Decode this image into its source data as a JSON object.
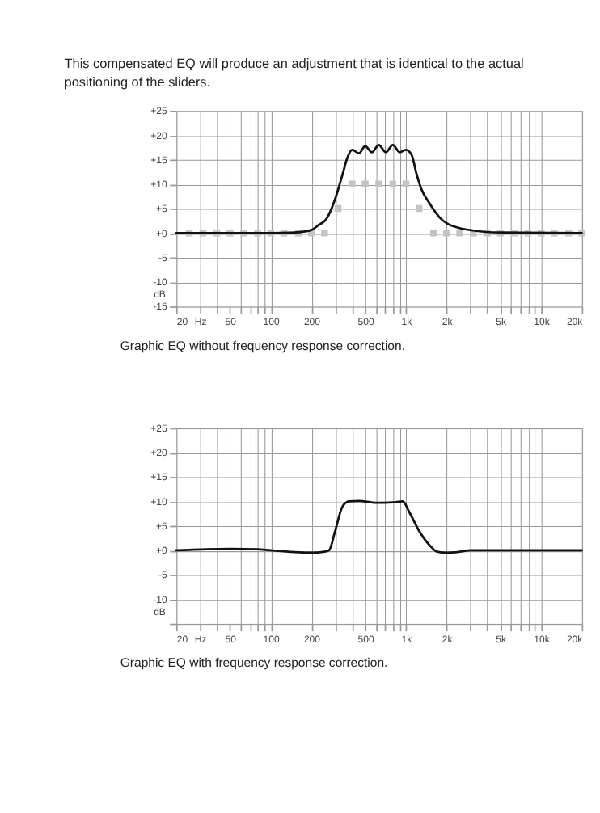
{
  "chart_data": [
    {
      "type": "line",
      "title": "This compensated EQ will produce an adjustment  that is identical to the actual positioning of the sliders.",
      "ylabel": "dB",
      "annotations": [
        "Graphic EQ without frequency response correction."
      ],
      "log": "x",
      "grid": true,
      "line_style": "solid",
      "xlim": [
        20,
        20000
      ],
      "ylim": [
        -15,
        25
      ],
      "xticks": [
        20,
        {
          "value": 30,
          "label": "Hz"
        },
        {
          "value": 40,
          "label": null
        },
        50,
        {
          "value": 60,
          "label": null
        },
        {
          "value": 70,
          "label": null
        },
        {
          "value": 80,
          "label": null
        },
        {
          "value": 90,
          "label": null
        },
        100,
        200,
        {
          "value": 300,
          "label": null
        },
        {
          "value": 400,
          "label": null
        },
        500,
        {
          "value": 600,
          "label": null
        },
        {
          "value": 700,
          "label": null
        },
        {
          "value": 800,
          "label": null
        },
        {
          "value": 900,
          "label": null
        },
        {
          "value": 1000,
          "label": "1k"
        },
        {
          "value": 2000,
          "label": "2k"
        },
        {
          "value": 3000,
          "label": null
        },
        {
          "value": 4000,
          "label": null
        },
        {
          "value": 5000,
          "label": "5k"
        },
        {
          "value": 6000,
          "label": null
        },
        {
          "value": 7000,
          "label": null
        },
        {
          "value": 8000,
          "label": null
        },
        {
          "value": 9000,
          "label": null
        },
        {
          "value": 10000,
          "label": "10k"
        },
        {
          "value": 20000,
          "label": "20k"
        }
      ],
      "yticks": [
        {
          "value": 25,
          "label": "+25"
        },
        {
          "value": 20,
          "label": "+20"
        },
        {
          "value": 15,
          "label": "+15"
        },
        {
          "value": 10,
          "label": "+10"
        },
        {
          "value": 5,
          "label": "+5"
        },
        {
          "value": 0,
          "label": "+0"
        },
        -5,
        -10,
        -15
      ],
      "series": [
        {
          "type": "scatter",
          "marker": "square",
          "color": "#c4c4c4",
          "x": [
            25,
            31.5,
            40,
            50,
            63,
            80,
            100,
            125,
            160,
            200,
            250,
            315,
            400,
            500,
            630,
            800,
            1000,
            1250,
            1600,
            2000,
            2500,
            3150,
            4000,
            5000,
            6300,
            8000,
            10000,
            12500,
            16000,
            20000
          ],
          "values": [
            0,
            0,
            0,
            0,
            0,
            0,
            0,
            0,
            0,
            0,
            0,
            5,
            10,
            10,
            10,
            10,
            10,
            5,
            0,
            0,
            0,
            0,
            0,
            0,
            0,
            0,
            0,
            0,
            0,
            0
          ]
        },
        {
          "color": "#111111",
          "x": [
            20,
            100,
            150,
            200,
            220,
            260,
            300,
            340,
            370,
            400,
            450,
            500,
            560,
            630,
            710,
            800,
            900,
            1000,
            1100,
            1200,
            1300,
            1500,
            1800,
            2000,
            2500,
            3150,
            5000,
            20000
          ],
          "values": [
            0,
            0,
            0.1,
            0.6,
            1.4,
            3,
            7,
            12,
            15.5,
            17,
            16.3,
            17.8,
            16.5,
            18,
            16.5,
            18,
            16.5,
            17,
            16,
            12,
            9,
            6,
            3,
            2,
            1,
            0.5,
            0.1,
            0
          ]
        }
      ]
    },
    {
      "type": "line",
      "ylabel": "dB",
      "annotations": [
        "Graphic EQ with frequency response correction."
      ],
      "log": "x",
      "grid": true,
      "line_style": "solid",
      "xlim": [
        20,
        20000
      ],
      "ylim": [
        -15,
        25
      ],
      "xticks": [
        20,
        {
          "value": 30,
          "label": "Hz"
        },
        {
          "value": 40,
          "label": null
        },
        50,
        {
          "value": 60,
          "label": null
        },
        {
          "value": 70,
          "label": null
        },
        {
          "value": 80,
          "label": null
        },
        {
          "value": 90,
          "label": null
        },
        100,
        200,
        {
          "value": 300,
          "label": null
        },
        {
          "value": 400,
          "label": null
        },
        500,
        {
          "value": 600,
          "label": null
        },
        {
          "value": 700,
          "label": null
        },
        {
          "value": 800,
          "label": null
        },
        {
          "value": 900,
          "label": null
        },
        {
          "value": 1000,
          "label": "1k"
        },
        {
          "value": 2000,
          "label": "2k"
        },
        {
          "value": 3000,
          "label": null
        },
        {
          "value": 4000,
          "label": null
        },
        {
          "value": 5000,
          "label": "5k"
        },
        {
          "value": 6000,
          "label": null
        },
        {
          "value": 7000,
          "label": null
        },
        {
          "value": 8000,
          "label": null
        },
        {
          "value": 9000,
          "label": null
        },
        {
          "value": 10000,
          "label": "10k"
        },
        {
          "value": 20000,
          "label": "20k"
        }
      ],
      "yticks": [
        {
          "value": 25,
          "label": "+25"
        },
        {
          "value": 20,
          "label": "+20"
        },
        {
          "value": 15,
          "label": "+15"
        },
        {
          "value": 10,
          "label": "+10"
        },
        {
          "value": 5,
          "label": "+5"
        },
        {
          "value": 0,
          "label": "+0"
        },
        -5,
        -10,
        {
          "value": -15,
          "label": null
        }
      ],
      "series": [
        {
          "color": "#111111",
          "x": [
            20,
            50,
            80,
            100,
            200,
            250,
            270,
            300,
            340,
            380,
            450,
            600,
            800,
            950,
            1050,
            1250,
            1500,
            1700,
            2000,
            2500,
            3000,
            20000
          ],
          "values": [
            0,
            0.3,
            0.2,
            0,
            -0.5,
            -0.3,
            0,
            4,
            9,
            10,
            10.1,
            9.7,
            9.8,
            10,
            8,
            4,
            1,
            -0.3,
            -0.5,
            -0.3,
            0,
            0
          ]
        }
      ]
    }
  ]
}
